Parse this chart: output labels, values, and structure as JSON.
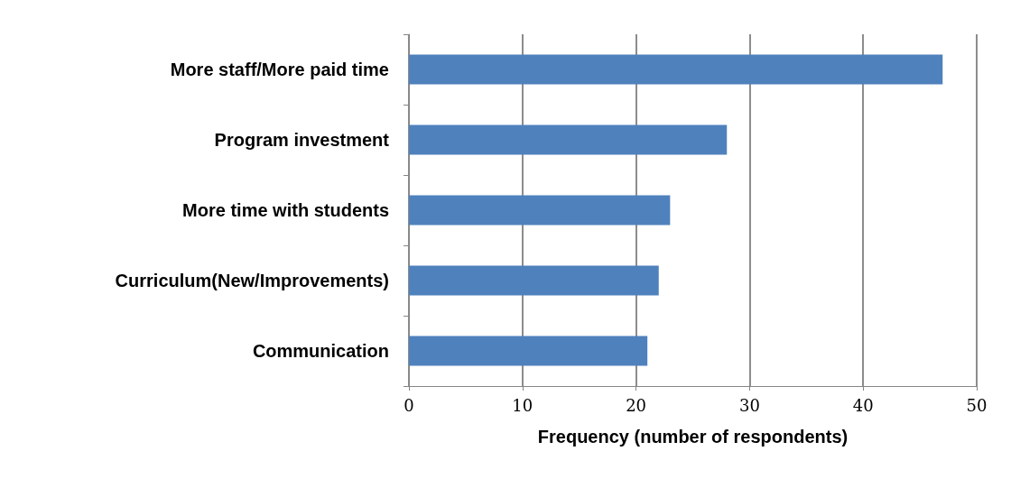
{
  "chart_data": {
    "type": "bar",
    "orientation": "horizontal",
    "xlabel": "Frequency (number of respondents)",
    "categories": [
      "More staff/More paid time",
      "Program investment",
      "More time with students",
      "Curriculum(New/Improvements)",
      "Communication"
    ],
    "values": [
      47,
      28,
      23,
      22,
      21
    ],
    "color": "#4f81bd",
    "xlim": [
      0,
      50
    ],
    "xticks": [
      0,
      10,
      20,
      30,
      40,
      50
    ],
    "grid": "x"
  }
}
